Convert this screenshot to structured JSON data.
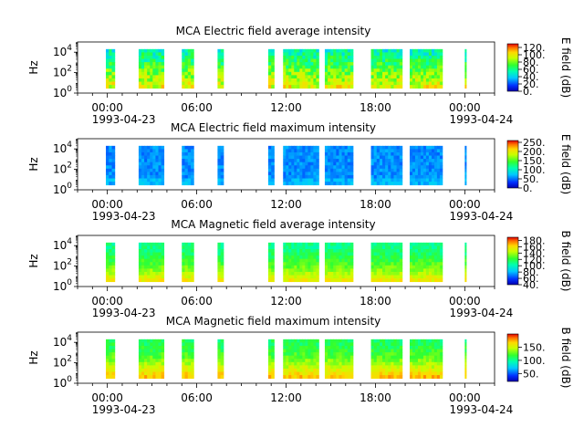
{
  "chart_data": [
    {
      "type": "heatmap",
      "title": "MCA  Electric field average intensity",
      "ylabel": "Hz",
      "y_scale": "log",
      "ylim": [
        1,
        100000
      ],
      "yticks": [
        {
          "base": "10",
          "exp": "0"
        },
        {
          "base": "10",
          "exp": "2"
        },
        {
          "base": "10",
          "exp": "4"
        }
      ],
      "xlim_hours": [
        -2,
        26
      ],
      "xticks": [
        {
          "hour": 0,
          "time": "00:00",
          "date": "1993-04-23"
        },
        {
          "hour": 6,
          "time": "06:00",
          "date": ""
        },
        {
          "hour": 12,
          "time": "12:00",
          "date": ""
        },
        {
          "hour": 18,
          "time": "18:00",
          "date": ""
        },
        {
          "hour": 24,
          "time": "00:00",
          "date": "1993-04-24"
        }
      ],
      "colorbar": {
        "label": "E field (dB)",
        "range": [
          0,
          130
        ],
        "ticks": [
          "0.",
          "20.",
          "40.",
          "60.",
          "80.",
          "100.",
          "120."
        ]
      },
      "mean_level": 0.55
    },
    {
      "type": "heatmap",
      "title": "MCA  Electric field maximum intensity",
      "ylabel": "Hz",
      "y_scale": "log",
      "ylim": [
        1,
        100000
      ],
      "yticks": [
        {
          "base": "10",
          "exp": "0"
        },
        {
          "base": "10",
          "exp": "2"
        },
        {
          "base": "10",
          "exp": "4"
        }
      ],
      "xlim_hours": [
        -2,
        26
      ],
      "xticks": [
        {
          "hour": 0,
          "time": "00:00",
          "date": "1993-04-23"
        },
        {
          "hour": 6,
          "time": "06:00",
          "date": ""
        },
        {
          "hour": 12,
          "time": "12:00",
          "date": ""
        },
        {
          "hour": 18,
          "time": "18:00",
          "date": ""
        },
        {
          "hour": 24,
          "time": "00:00",
          "date": "1993-04-24"
        }
      ],
      "colorbar": {
        "label": "E field (dB)",
        "range": [
          0,
          260
        ],
        "ticks": [
          "0.",
          "50.",
          "100.",
          "150.",
          "200.",
          "250."
        ]
      },
      "mean_level": 0.3
    },
    {
      "type": "heatmap",
      "title": "MCA  Magnetic field average intensity",
      "ylabel": "Hz",
      "y_scale": "log",
      "ylim": [
        1,
        100000
      ],
      "yticks": [
        {
          "base": "10",
          "exp": "0"
        },
        {
          "base": "10",
          "exp": "2"
        },
        {
          "base": "10",
          "exp": "4"
        }
      ],
      "xlim_hours": [
        -2,
        26
      ],
      "xticks": [
        {
          "hour": 0,
          "time": "00:00",
          "date": "1993-04-23"
        },
        {
          "hour": 6,
          "time": "06:00",
          "date": ""
        },
        {
          "hour": 12,
          "time": "12:00",
          "date": ""
        },
        {
          "hour": 18,
          "time": "18:00",
          "date": ""
        },
        {
          "hour": 24,
          "time": "00:00",
          "date": "1993-04-24"
        }
      ],
      "colorbar": {
        "label": "B field (dB)",
        "range": [
          40,
          190
        ],
        "ticks": [
          "40.",
          "60.",
          "80.",
          "100.",
          "120.",
          "140.",
          "160.",
          "180."
        ]
      },
      "mean_level": 0.5
    },
    {
      "type": "heatmap",
      "title": "MCA  Magnetic field maximum intensity",
      "ylabel": "Hz",
      "y_scale": "log",
      "ylim": [
        1,
        100000
      ],
      "yticks": [
        {
          "base": "10",
          "exp": "0"
        },
        {
          "base": "10",
          "exp": "2"
        },
        {
          "base": "10",
          "exp": "4"
        }
      ],
      "xlim_hours": [
        -2,
        26
      ],
      "xticks": [
        {
          "hour": 0,
          "time": "00:00",
          "date": "1993-04-23"
        },
        {
          "hour": 6,
          "time": "06:00",
          "date": ""
        },
        {
          "hour": 12,
          "time": "12:00",
          "date": ""
        },
        {
          "hour": 18,
          "time": "18:00",
          "date": ""
        },
        {
          "hour": 24,
          "time": "00:00",
          "date": "1993-04-24"
        }
      ],
      "colorbar": {
        "label": "B field (dB)",
        "range": [
          20,
          200
        ],
        "ticks": [
          "50.",
          "100.",
          "150."
        ]
      },
      "mean_level": 0.55
    }
  ],
  "data_intervals_hours": [
    [
      -0.1,
      0.5
    ],
    [
      2.1,
      3.8
    ],
    [
      5.0,
      5.8
    ],
    [
      7.4,
      7.8
    ],
    [
      10.8,
      11.2
    ],
    [
      11.8,
      14.2
    ],
    [
      14.6,
      16.5
    ],
    [
      17.7,
      19.8
    ],
    [
      20.3,
      22.5
    ],
    [
      24.0,
      24.1
    ]
  ],
  "freq_coverage": [
    3,
    20000
  ]
}
